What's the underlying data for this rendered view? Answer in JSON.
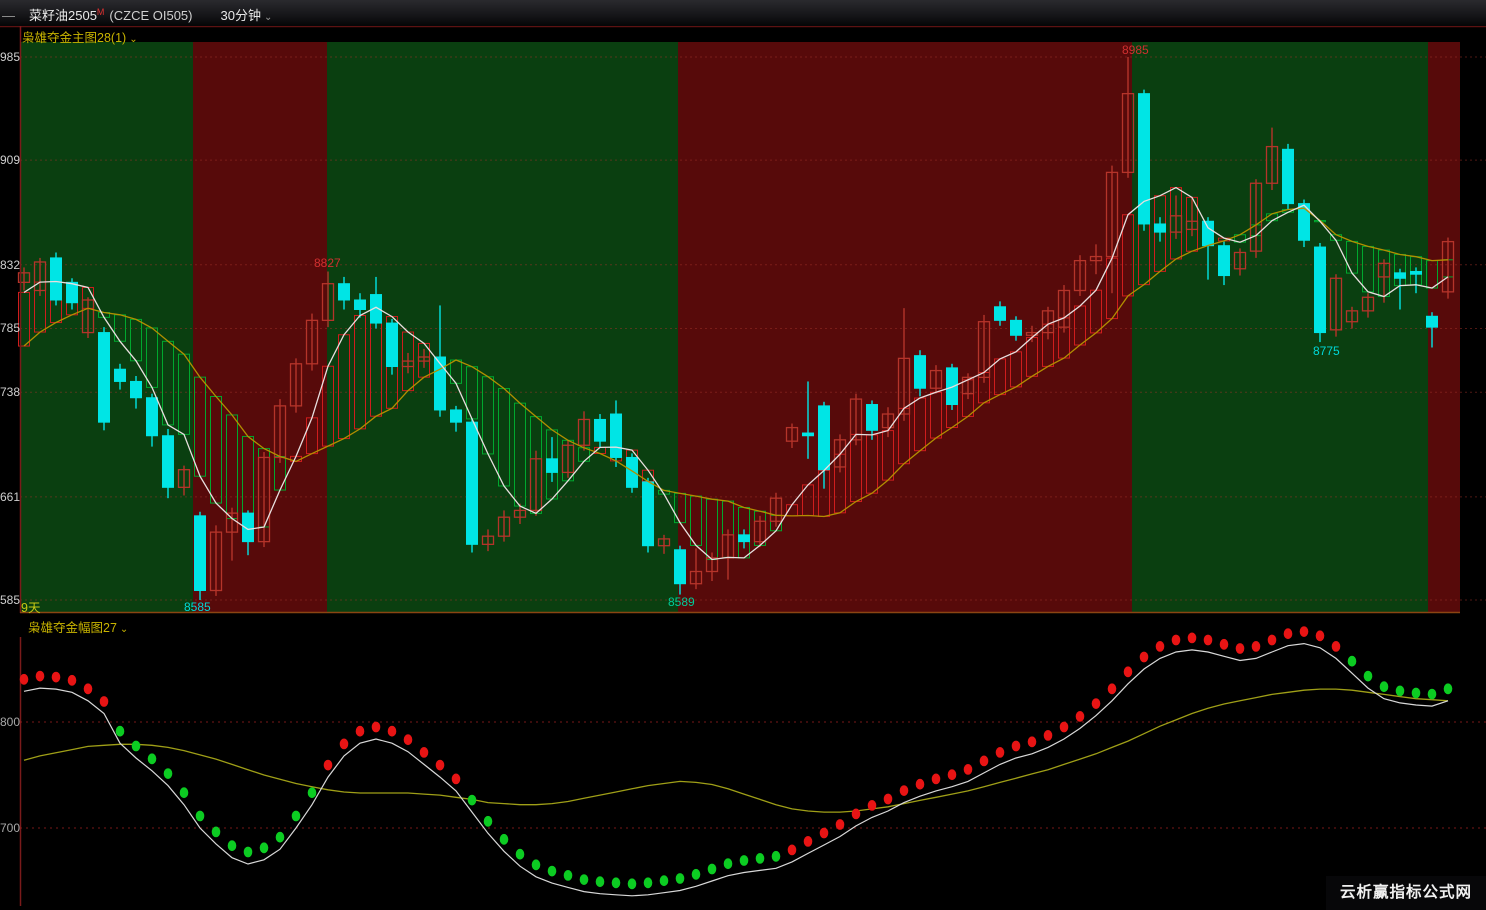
{
  "title_bar": {
    "back_dash": "—",
    "instrument": "菜籽油2505",
    "superscript": "M",
    "code": "(CZCE OI505)",
    "period": "30分钟",
    "caret": "⌄"
  },
  "main_panel": {
    "indicator_label": "枭雄夺金主图28(1)",
    "caret": "⌄",
    "days_label": "9天",
    "left_axis_labels": [
      "985",
      "909",
      "832",
      "785",
      "738",
      "661",
      "585"
    ],
    "grid_prices": [
      8985,
      8909,
      8832,
      8785,
      8738,
      8661,
      8585
    ],
    "annotations": [
      {
        "text": "8827",
        "colorKey": "annoRed"
      },
      {
        "text": "8985",
        "colorKey": "annoRed"
      },
      {
        "text": "8585",
        "colorKey": "annoCyan"
      },
      {
        "text": "8589",
        "colorKey": "annoGreen"
      },
      {
        "text": "8775",
        "colorKey": "annoCyan"
      }
    ],
    "bands": [
      [
        20,
        193,
        "g"
      ],
      [
        193,
        327,
        "r"
      ],
      [
        327,
        678,
        "g"
      ],
      [
        678,
        1132,
        "r"
      ],
      [
        1132,
        1428,
        "g"
      ],
      [
        1428,
        1460,
        "r"
      ]
    ],
    "prehistory_closes": [
      8700,
      8715,
      8730,
      8744,
      8756,
      8768,
      8778,
      8788,
      8796,
      8804,
      8812,
      8820
    ],
    "candles": [
      [
        8819,
        8830,
        8813,
        8826
      ],
      [
        8813,
        8837,
        8809,
        8834
      ],
      [
        8837,
        8841,
        8802,
        8806
      ],
      [
        8819,
        8822,
        8799,
        8804
      ],
      [
        8782,
        8808,
        8778,
        8806
      ],
      [
        8782,
        8786,
        8710,
        8716
      ],
      [
        8755,
        8759,
        8740,
        8746
      ],
      [
        8746,
        8750,
        8726,
        8734
      ],
      [
        8734,
        8737,
        8698,
        8706
      ],
      [
        8706,
        8711,
        8660,
        8668
      ],
      [
        8668,
        8684,
        8662,
        8681
      ],
      [
        8647,
        8650,
        8585,
        8592
      ],
      [
        8592,
        8640,
        8588,
        8635
      ],
      [
        8635,
        8653,
        8614,
        8649
      ],
      [
        8649,
        8651,
        8618,
        8628
      ],
      [
        8628,
        8694,
        8624,
        8690
      ],
      [
        8690,
        8733,
        8686,
        8728
      ],
      [
        8728,
        8763,
        8723,
        8759
      ],
      [
        8759,
        8796,
        8754,
        8791
      ],
      [
        8791,
        8827,
        8786,
        8818
      ],
      [
        8818,
        8823,
        8799,
        8806
      ],
      [
        8806,
        8811,
        8793,
        8799
      ],
      [
        8810,
        8823,
        8785,
        8789
      ],
      [
        8789,
        8792,
        8751,
        8757
      ],
      [
        8757,
        8767,
        8752,
        8761
      ],
      [
        8761,
        8770,
        8756,
        8764
      ],
      [
        8764,
        8802,
        8720,
        8725
      ],
      [
        8725,
        8728,
        8709,
        8716
      ],
      [
        8716,
        8719,
        8620,
        8626
      ],
      [
        8626,
        8637,
        8621,
        8632
      ],
      [
        8632,
        8651,
        8628,
        8646
      ],
      [
        8646,
        8656,
        8641,
        8651
      ],
      [
        8651,
        8695,
        8647,
        8689
      ],
      [
        8689,
        8705,
        8672,
        8679
      ],
      [
        8679,
        8703,
        8675,
        8699
      ],
      [
        8699,
        8724,
        8695,
        8718
      ],
      [
        8718,
        8722,
        8697,
        8702
      ],
      [
        8722,
        8732,
        8683,
        8690
      ],
      [
        8690,
        8693,
        8664,
        8668
      ],
      [
        8672,
        8675,
        8620,
        8625
      ],
      [
        8625,
        8633,
        8619,
        8630
      ],
      [
        8622,
        8625,
        8589,
        8597
      ],
      [
        8597,
        8623,
        8593,
        8606
      ],
      [
        8606,
        8620,
        8599,
        8616
      ],
      [
        8616,
        8637,
        8600,
        8633
      ],
      [
        8633,
        8637,
        8623,
        8628
      ],
      [
        8628,
        8647,
        8624,
        8643
      ],
      [
        8643,
        8664,
        8639,
        8660
      ],
      [
        8702,
        8715,
        8697,
        8712
      ],
      [
        8708,
        8746,
        8689,
        8706
      ],
      [
        8728,
        8731,
        8667,
        8681
      ],
      [
        8683,
        8707,
        8679,
        8703
      ],
      [
        8703,
        8737,
        8699,
        8733
      ],
      [
        8729,
        8732,
        8703,
        8710
      ],
      [
        8712,
        8727,
        8705,
        8722
      ],
      [
        8722,
        8800,
        8717,
        8763
      ],
      [
        8765,
        8769,
        8735,
        8741
      ],
      [
        8741,
        8758,
        8737,
        8754
      ],
      [
        8756,
        8759,
        8725,
        8729
      ],
      [
        8737,
        8752,
        8733,
        8749
      ],
      [
        8749,
        8795,
        8745,
        8790
      ],
      [
        8801,
        8805,
        8787,
        8791
      ],
      [
        8791,
        8794,
        8776,
        8780
      ],
      [
        8780,
        8787,
        8775,
        8782
      ],
      [
        8782,
        8801,
        8777,
        8798
      ],
      [
        8786,
        8817,
        8782,
        8813
      ],
      [
        8813,
        8839,
        8809,
        8835
      ],
      [
        8835,
        8847,
        8825,
        8838
      ],
      [
        8838,
        8905,
        8811,
        8900
      ],
      [
        8900,
        8985,
        8896,
        8958
      ],
      [
        8958,
        8961,
        8857,
        8862
      ],
      [
        8862,
        8867,
        8849,
        8856
      ],
      [
        8856,
        8883,
        8851,
        8868
      ],
      [
        8858,
        8882,
        8853,
        8864
      ],
      [
        8864,
        8867,
        8821,
        8846
      ],
      [
        8846,
        8849,
        8817,
        8824
      ],
      [
        8829,
        8844,
        8824,
        8841
      ],
      [
        8842,
        8895,
        8837,
        8892
      ],
      [
        8892,
        8933,
        8887,
        8919
      ],
      [
        8917,
        8921,
        8873,
        8877
      ],
      [
        8877,
        8880,
        8845,
        8850
      ],
      [
        8845,
        8848,
        8775,
        8782
      ],
      [
        8784,
        8825,
        8779,
        8822
      ],
      [
        8790,
        8801,
        8785,
        8798
      ],
      [
        8798,
        8811,
        8793,
        8808
      ],
      [
        8823,
        8836,
        8804,
        8833
      ],
      [
        8826,
        8829,
        8799,
        8822
      ],
      [
        8827,
        8830,
        8811,
        8825
      ],
      [
        8794,
        8797,
        8771,
        8786
      ],
      [
        8812,
        8852,
        8807,
        8849
      ]
    ]
  },
  "lower_panel": {
    "indicator_label": "枭雄夺金幅图27",
    "caret": "⌄",
    "axis_labels": [
      "800",
      "700"
    ],
    "grid_values": [
      800,
      700
    ],
    "white_line": [
      829,
      832,
      831,
      828,
      820,
      808,
      780,
      766,
      754,
      740,
      722,
      700,
      685,
      672,
      666,
      670,
      680,
      700,
      722,
      748,
      768,
      780,
      784,
      780,
      772,
      760,
      748,
      735,
      715,
      695,
      678,
      664,
      654,
      648,
      644,
      640,
      638,
      637,
      636,
      637,
      639,
      641,
      645,
      650,
      655,
      658,
      660,
      662,
      668,
      676,
      684,
      692,
      702,
      710,
      716,
      724,
      730,
      735,
      739,
      744,
      752,
      760,
      766,
      770,
      776,
      784,
      794,
      806,
      820,
      836,
      850,
      860,
      866,
      868,
      866,
      862,
      858,
      860,
      866,
      872,
      874,
      870,
      860,
      846,
      832,
      822,
      818,
      816,
      815,
      820
    ],
    "yellow_line": [
      764,
      768,
      771,
      774,
      777,
      778,
      779,
      779,
      778,
      776,
      773,
      769,
      765,
      760,
      755,
      750,
      746,
      742,
      739,
      736,
      734,
      733,
      733,
      733,
      733,
      732,
      731,
      729,
      727,
      724,
      723,
      722,
      722,
      723,
      725,
      728,
      731,
      734,
      737,
      740,
      742,
      744,
      743,
      741,
      737,
      732,
      727,
      722,
      718,
      716,
      715,
      715,
      716,
      718,
      720,
      723,
      726,
      729,
      732,
      735,
      739,
      743,
      747,
      751,
      755,
      760,
      765,
      770,
      776,
      782,
      789,
      796,
      802,
      808,
      813,
      817,
      820,
      823,
      826,
      828,
      830,
      831,
      831,
      830,
      828,
      826,
      824,
      822,
      821,
      820
    ],
    "dot_colors": "rrrrrrgggggggggggggrrrrrrrrrggggggggggggggggggggrrrrrrrrrrrrrrrrrrrrrrrrrrrrrrrrrrrggggggg"
  },
  "watermark": "云析赢指标公式网",
  "colors": {
    "bandGreen": "#0a3f10",
    "bandRed": "#570a0a",
    "grid": "#a03028",
    "candleDown": "#00e5e5",
    "candleUp": "#b5342a",
    "ribbonUp": "#cf1d1d",
    "ribbonDown": "#00a82e",
    "maFast": "#e8dfdf",
    "maSlow": "#b28f00",
    "frame": "#7a1a1a",
    "frameTop": "#5c1212",
    "frameBottom": "#8a4512",
    "lowerWhite": "#d8d8d8",
    "lowerYellow": "#9f9f17",
    "lowerGrid": "#a02020",
    "dotRed": "#e81414",
    "dotGreen": "#0ccc22",
    "annoRed": "#d03030",
    "annoCyan": "#00d8d8",
    "annoGreen": "#00cc99"
  }
}
